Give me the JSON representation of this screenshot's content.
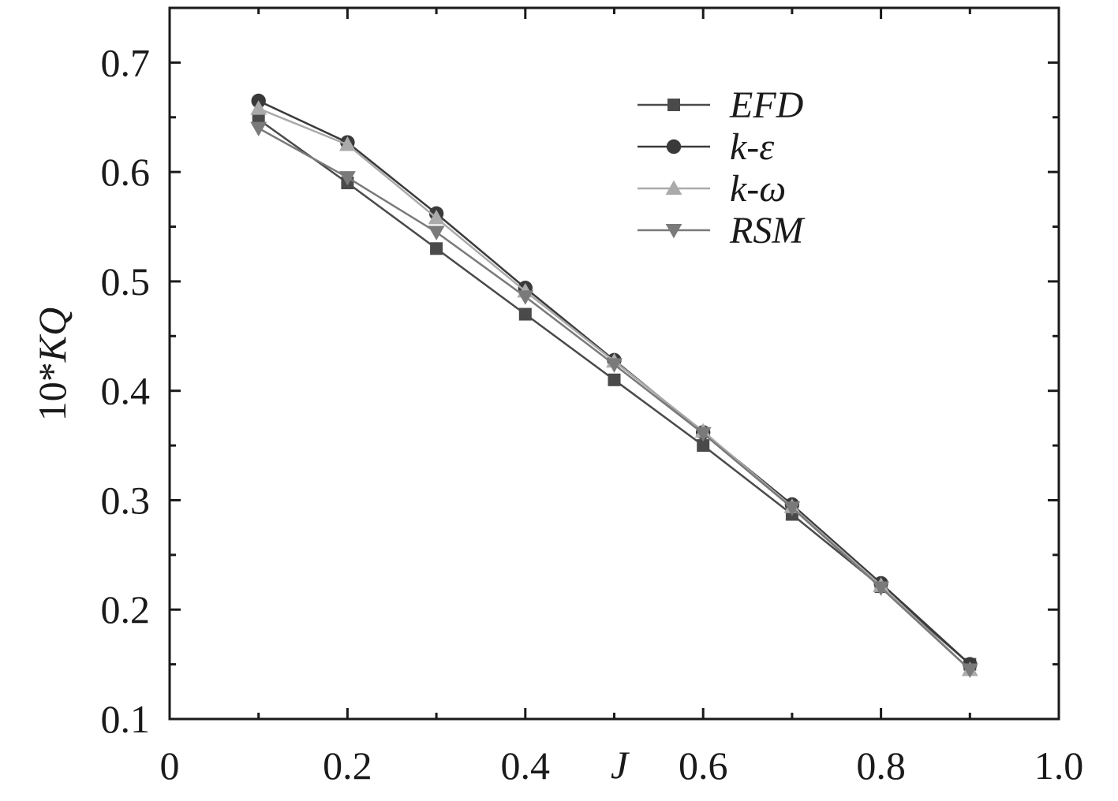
{
  "chart_data": {
    "type": "line",
    "xlabel": "J",
    "ylabel_prefix": "10*",
    "ylabel_var": "KQ",
    "xlim": [
      0,
      1.0
    ],
    "ylim": [
      0.1,
      0.75
    ],
    "xticks": [
      0,
      0.2,
      0.4,
      0.6,
      0.8,
      1.0
    ],
    "xtick_labels": [
      "0",
      "0.2",
      "0.4",
      "0.6",
      "0.8",
      "1.0"
    ],
    "yticks": [
      0.1,
      0.2,
      0.3,
      0.4,
      0.5,
      0.6,
      0.7
    ],
    "ytick_labels": [
      "0.1",
      "0.2",
      "0.3",
      "0.4",
      "0.5",
      "0.6",
      "0.7"
    ],
    "grid": false,
    "legend_position": "top-right",
    "x": [
      0.1,
      0.2,
      0.3,
      0.4,
      0.5,
      0.6,
      0.7,
      0.8,
      0.9
    ],
    "series": [
      {
        "name": "EFD",
        "marker": "square",
        "color": "#4a4a4a",
        "values": [
          0.648,
          0.59,
          0.53,
          0.47,
          0.41,
          0.35,
          0.287,
          0.221,
          0.15
        ]
      },
      {
        "name": "k-ε",
        "marker": "circle",
        "color": "#3a3a3a",
        "values": [
          0.665,
          0.627,
          0.562,
          0.494,
          0.428,
          0.362,
          0.296,
          0.224,
          0.15
        ]
      },
      {
        "name": "k-ω",
        "marker": "triangle-up",
        "color": "#aaaaaa",
        "values": [
          0.658,
          0.625,
          0.558,
          0.491,
          0.427,
          0.363,
          0.294,
          0.222,
          0.145
        ]
      },
      {
        "name": "RSM",
        "marker": "triangle-down",
        "color": "#7a7a7a",
        "values": [
          0.64,
          0.595,
          0.545,
          0.486,
          0.424,
          0.361,
          0.293,
          0.22,
          0.145
        ]
      }
    ]
  }
}
